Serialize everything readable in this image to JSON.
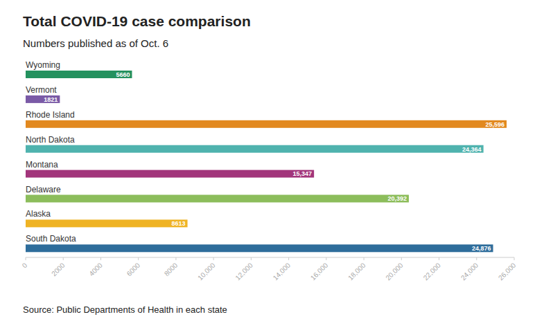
{
  "chart_data": {
    "type": "bar",
    "orientation": "horizontal",
    "title": "Total COVID-19 case comparison",
    "subtitle": "Numbers published as of Oct. 6",
    "source": "Source: Public Departments of Health in each state",
    "categories": [
      "Wyoming",
      "Vermont",
      "Rhode Island",
      "North Dakota",
      "Montana",
      "Delaware",
      "Alaska",
      "South Dakota"
    ],
    "values": [
      5660,
      1821,
      25596,
      24364,
      15347,
      20392,
      8613,
      24876
    ],
    "value_labels": [
      "5660",
      "1821",
      "25,596",
      "24,364",
      "15,347",
      "20,392",
      "8613",
      "24,876"
    ],
    "colors": [
      "#24915e",
      "#7a5aa6",
      "#e2891f",
      "#4fb3ae",
      "#a2357b",
      "#8cbd5b",
      "#efb324",
      "#2e6d9b"
    ],
    "data_labels": true,
    "grid": false,
    "xlim": [
      0,
      26000
    ],
    "xticks": [
      0,
      2000,
      4000,
      6000,
      8000,
      {
        "value": 10000,
        "label": "10,000"
      },
      {
        "value": 12000,
        "label": "12,000"
      },
      {
        "value": 14000,
        "label": "14,000"
      },
      {
        "value": 16000,
        "label": "16,000"
      },
      {
        "value": 18000,
        "label": "18,000"
      },
      {
        "value": 20000,
        "label": "20,000"
      },
      {
        "value": 22000,
        "label": "22,000"
      },
      {
        "value": 24000,
        "label": "24,000"
      },
      {
        "value": 26000,
        "label": "26,000"
      }
    ]
  }
}
